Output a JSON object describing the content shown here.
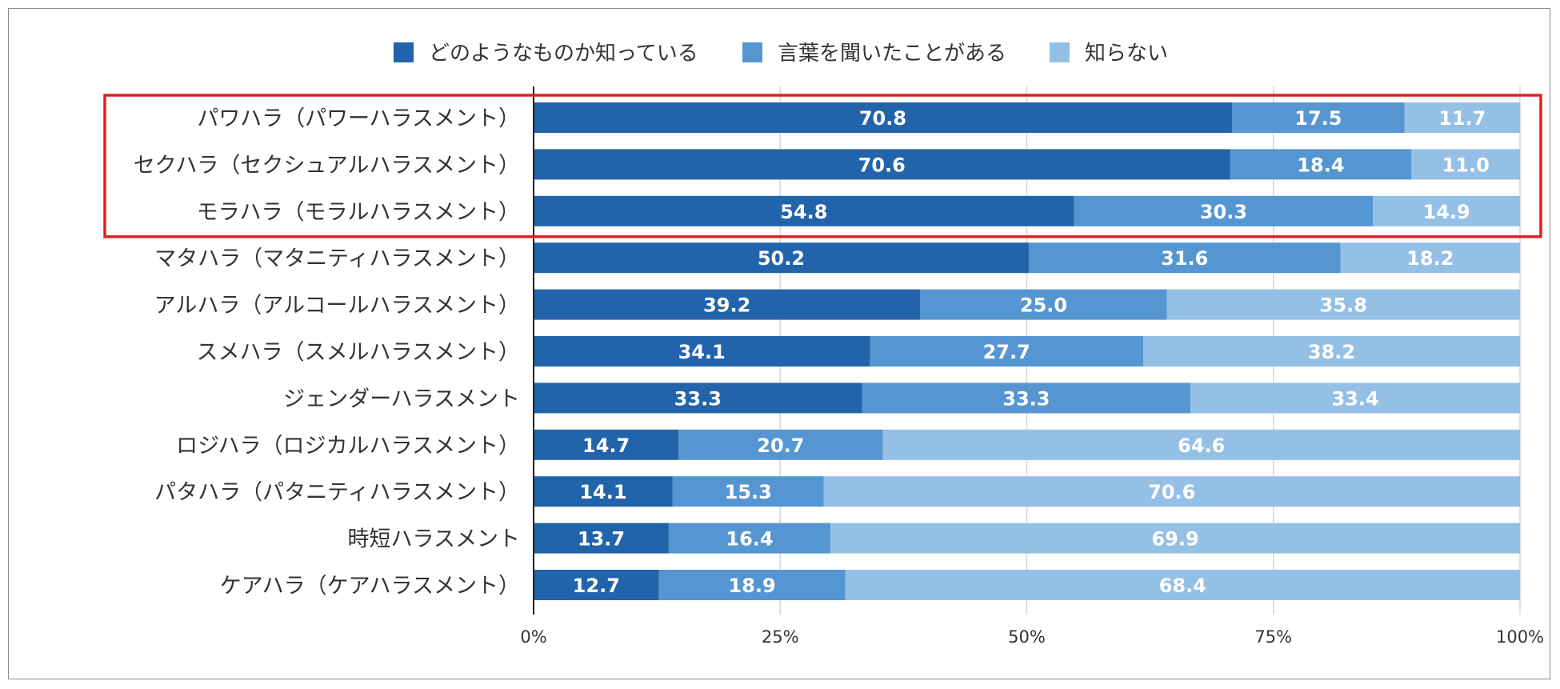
{
  "chart_data": {
    "type": "bar",
    "orientation": "horizontal",
    "stacked": true,
    "title": "",
    "xlabel": "",
    "ylabel": "",
    "xlim": [
      0,
      100
    ],
    "ticks": [
      "0%",
      "25%",
      "50%",
      "75%",
      "100%"
    ],
    "grid": true,
    "legend_position": "top",
    "categories": [
      "パワハラ（パワーハラスメント）",
      "セクハラ（セクシュアルハラスメント）",
      "モラハラ（モラルハラスメント）",
      "マタハラ（マタニティハラスメント）",
      "アルハラ（アルコールハラスメント）",
      "スメハラ（スメルハラスメント）",
      "ジェンダーハラスメント",
      "ロジハラ（ロジカルハラスメント）",
      "パタハラ（パタニティハラスメント）",
      "時短ハラスメント",
      "ケアハラ（ケアハラスメント）"
    ],
    "series": [
      {
        "name": "どのようなものか知っている",
        "color": "#2264ab",
        "values": [
          70.8,
          70.6,
          54.8,
          50.2,
          39.2,
          34.1,
          33.3,
          14.7,
          14.1,
          13.7,
          12.7
        ],
        "labels": [
          "70.8",
          "70.6",
          "54.8",
          "50.2",
          "39.2",
          "34.1",
          "33.3",
          "14.7",
          "14.1",
          "13.7",
          "12.7"
        ]
      },
      {
        "name": "言葉を聞いたことがある",
        "color": "#5596d2",
        "values": [
          17.5,
          18.4,
          30.3,
          31.6,
          25.0,
          27.7,
          33.3,
          20.7,
          15.3,
          16.4,
          18.9
        ],
        "labels": [
          "17.5",
          "18.4",
          "30.3",
          "31.6",
          "25.0",
          "27.7",
          "33.3",
          "20.7",
          "15.3",
          "16.4",
          "18.9"
        ]
      },
      {
        "name": "知らない",
        "color": "#94c0e6",
        "values": [
          11.7,
          11.0,
          14.9,
          18.2,
          35.8,
          38.2,
          33.4,
          64.6,
          70.6,
          69.9,
          68.4
        ],
        "labels": [
          "11.7",
          "11.0",
          "14.9",
          "18.2",
          "35.8",
          "38.2",
          "33.4",
          "64.6",
          "70.6",
          "69.9",
          "68.4"
        ]
      }
    ],
    "highlight": {
      "first_category": 0,
      "last_category": 2,
      "color": "#e02020"
    }
  }
}
